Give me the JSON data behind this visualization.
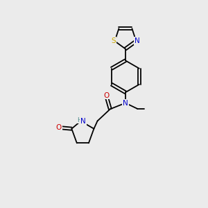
{
  "background_color": "#ebebeb",
  "bond_color": "#000000",
  "atom_colors": {
    "N": "#0000cc",
    "O": "#cc0000",
    "S": "#ccaa00",
    "NH": "#4a8888",
    "C": "#000000"
  },
  "figsize": [
    3.0,
    3.0
  ],
  "dpi": 100,
  "bond_lw": 1.3,
  "font_size": 7.0,
  "double_sep": 0.07
}
